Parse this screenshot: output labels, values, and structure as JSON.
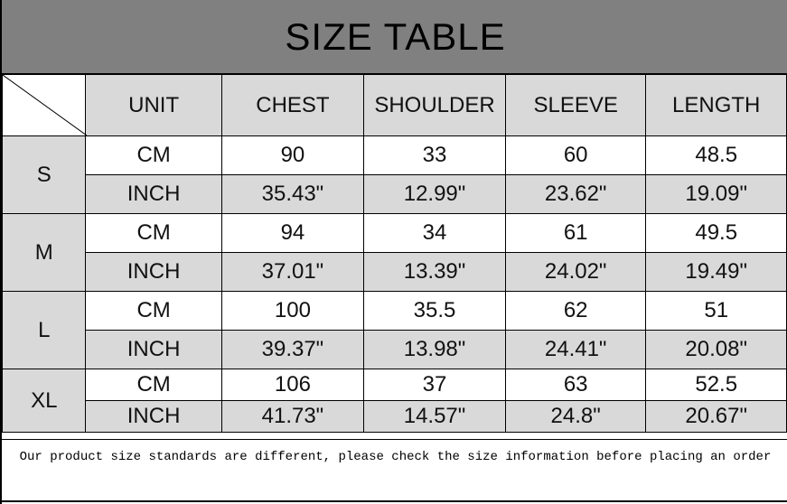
{
  "title": "SIZE TABLE",
  "headers": [
    "UNIT",
    "CHEST",
    "SHOULDER",
    "SLEEVE",
    "LENGTH"
  ],
  "sizes": [
    {
      "size": "S",
      "rows": [
        {
          "unit": "CM",
          "values": [
            "90",
            "33",
            "60",
            "48.5"
          ]
        },
        {
          "unit": "INCH",
          "values": [
            "35.43\"",
            "12.99\"",
            "23.62\"",
            "19.09\""
          ]
        }
      ]
    },
    {
      "size": "M",
      "rows": [
        {
          "unit": "CM",
          "values": [
            "94",
            "34",
            "61",
            "49.5"
          ]
        },
        {
          "unit": "INCH",
          "values": [
            "37.01\"",
            "13.39\"",
            "24.02\"",
            "19.49\""
          ]
        }
      ]
    },
    {
      "size": "L",
      "rows": [
        {
          "unit": "CM",
          "values": [
            "100",
            "35.5",
            "62",
            "51"
          ]
        },
        {
          "unit": "INCH",
          "values": [
            "39.37\"",
            "13.98\"",
            "24.41\"",
            "20.08\""
          ]
        }
      ]
    },
    {
      "size": "XL",
      "rows": [
        {
          "unit": "CM",
          "values": [
            "106",
            "37",
            "63",
            "52.5"
          ]
        },
        {
          "unit": "INCH",
          "values": [
            "41.73\"",
            "14.57\"",
            "24.8\"",
            "20.67\""
          ]
        }
      ]
    }
  ],
  "footer": "Our product size standards are different, please check the size information before placing an order",
  "colors": {
    "title_bg": "#808080",
    "cell_gray": "#d9d9d9",
    "cell_white": "#ffffff"
  }
}
